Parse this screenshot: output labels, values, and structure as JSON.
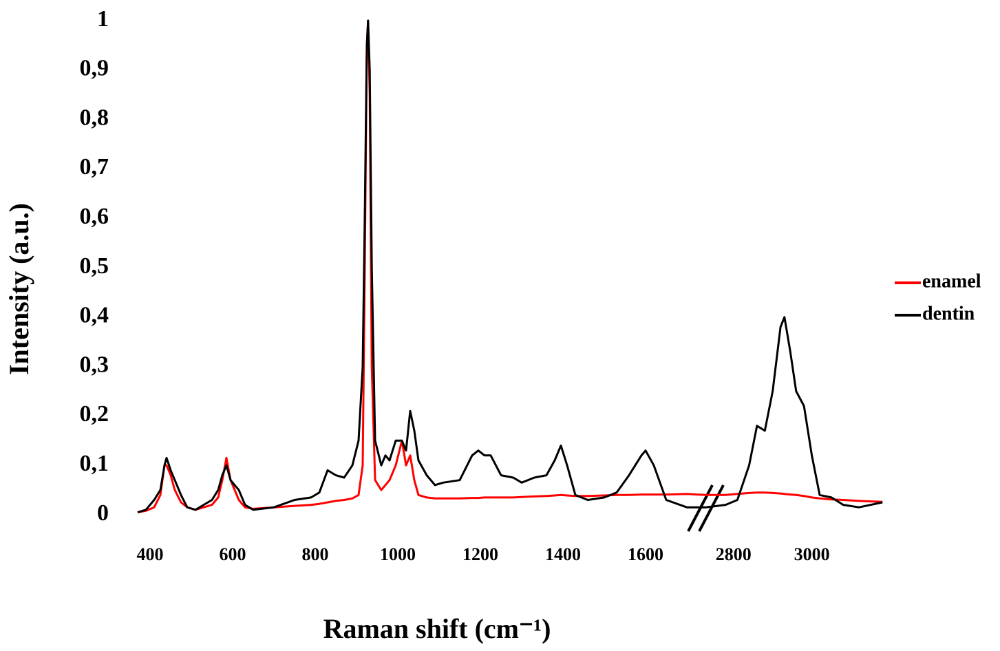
{
  "chart_data": {
    "type": "line",
    "y_label": "Intensity (a.u.)",
    "x_label": "Raman shift (cm⁻¹)",
    "xlim": [
      360,
      3185
    ],
    "xbreak": [
      1705,
      2725
    ],
    "xticks": [
      400,
      600,
      800,
      1000,
      1200,
      1400,
      1600,
      2800,
      3000
    ],
    "ylim": [
      0,
      1
    ],
    "yticks": [
      0,
      {
        "value": 0.1,
        "label": "0,1"
      },
      {
        "value": 0.2,
        "label": "0,2"
      },
      {
        "value": 0.3,
        "label": "0,3"
      },
      {
        "value": 0.4,
        "label": "0,4"
      },
      {
        "value": 0.5,
        "label": "0,5"
      },
      {
        "value": 0.6,
        "label": "0,6"
      },
      {
        "value": 0.7,
        "label": "0,7"
      },
      {
        "value": 0.8,
        "label": "0,8"
      },
      {
        "value": 0.9,
        "label": "0,9"
      },
      1
    ],
    "grid": false,
    "legend": "right",
    "x": [
      370,
      390,
      410,
      425,
      435,
      440,
      450,
      460,
      475,
      490,
      510,
      530,
      550,
      565,
      575,
      585,
      595,
      605,
      615,
      630,
      650,
      700,
      750,
      790,
      810,
      830,
      850,
      870,
      890,
      905,
      915,
      920,
      925,
      928,
      932,
      937,
      945,
      960,
      970,
      980,
      995,
      1010,
      1020,
      1030,
      1040,
      1050,
      1070,
      1090,
      1110,
      1150,
      1180,
      1195,
      1210,
      1225,
      1250,
      1280,
      1300,
      1330,
      1360,
      1380,
      1395,
      1410,
      1430,
      1460,
      1500,
      1530,
      1560,
      1590,
      1600,
      1620,
      1650,
      1700,
      2730,
      2780,
      2810,
      2840,
      2860,
      2880,
      2900,
      2920,
      2930,
      2945,
      2960,
      2980,
      3000,
      3020,
      3050,
      3080,
      3120,
      3180
    ],
    "series": [
      {
        "name": "enamel",
        "color": "#ff0000",
        "values": [
          0.005,
          0.008,
          0.015,
          0.04,
          0.1,
          0.1,
          0.08,
          0.05,
          0.025,
          0.015,
          0.01,
          0.015,
          0.02,
          0.035,
          0.07,
          0.115,
          0.07,
          0.05,
          0.03,
          0.015,
          0.012,
          0.015,
          0.018,
          0.02,
          0.022,
          0.025,
          0.028,
          0.03,
          0.033,
          0.04,
          0.1,
          0.5,
          0.95,
          1.0,
          0.85,
          0.3,
          0.07,
          0.05,
          0.06,
          0.07,
          0.1,
          0.15,
          0.1,
          0.12,
          0.07,
          0.04,
          0.035,
          0.033,
          0.033,
          0.033,
          0.034,
          0.034,
          0.035,
          0.035,
          0.035,
          0.035,
          0.036,
          0.037,
          0.038,
          0.039,
          0.04,
          0.039,
          0.038,
          0.038,
          0.039,
          0.04,
          0.04,
          0.041,
          0.041,
          0.041,
          0.041,
          0.042,
          0.04,
          0.04,
          0.042,
          0.044,
          0.045,
          0.045,
          0.044,
          0.043,
          0.042,
          0.041,
          0.04,
          0.038,
          0.035,
          0.033,
          0.031,
          0.03,
          0.028,
          0.026
        ]
      },
      {
        "name": "dentin",
        "color": "#000000",
        "values": [
          0.005,
          0.01,
          0.03,
          0.05,
          0.1,
          0.115,
          0.09,
          0.07,
          0.04,
          0.015,
          0.01,
          0.02,
          0.03,
          0.05,
          0.08,
          0.1,
          0.07,
          0.06,
          0.05,
          0.02,
          0.01,
          0.015,
          0.03,
          0.035,
          0.045,
          0.09,
          0.08,
          0.075,
          0.1,
          0.15,
          0.3,
          0.6,
          0.95,
          1.0,
          0.9,
          0.5,
          0.15,
          0.1,
          0.12,
          0.11,
          0.15,
          0.15,
          0.13,
          0.21,
          0.17,
          0.11,
          0.08,
          0.06,
          0.065,
          0.07,
          0.12,
          0.13,
          0.12,
          0.12,
          0.08,
          0.075,
          0.065,
          0.075,
          0.08,
          0.11,
          0.14,
          0.1,
          0.04,
          0.03,
          0.035,
          0.045,
          0.08,
          0.12,
          0.13,
          0.1,
          0.03,
          0.015,
          0.015,
          0.02,
          0.03,
          0.1,
          0.18,
          0.17,
          0.25,
          0.38,
          0.4,
          0.33,
          0.25,
          0.22,
          0.12,
          0.04,
          0.035,
          0.02,
          0.015,
          0.025
        ]
      }
    ]
  }
}
